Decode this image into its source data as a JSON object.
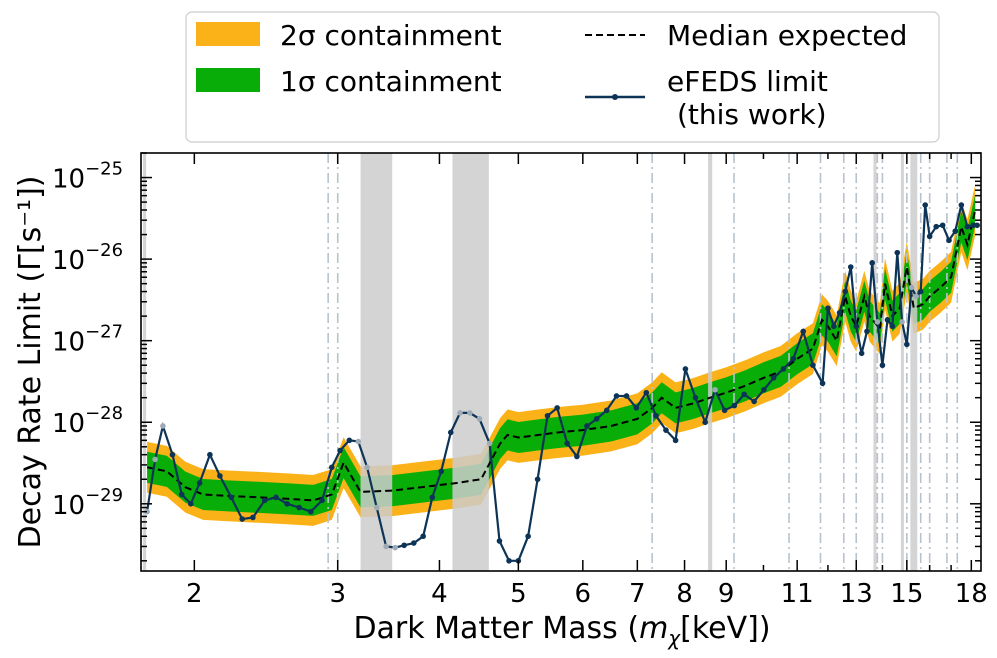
{
  "chart_data": {
    "type": "line",
    "title": "",
    "xlabel_text": "Dark Matter Mass (",
    "xlabel_sym": "m",
    "xlabel_sub": "χ",
    "xlabel_unit": "[keV])",
    "ylabel": "Decay Rate Limit (Γ[s⁻¹])",
    "xscale": "log",
    "yscale": "log",
    "xlim": [
      1.72,
      18.5
    ],
    "ylim": [
      1.5e-30,
      2e-25
    ],
    "x_ticks": [
      {
        "v": 2,
        "label": "2"
      },
      {
        "v": 3,
        "label": "3"
      },
      {
        "v": 4,
        "label": "4"
      },
      {
        "v": 5,
        "label": "5"
      },
      {
        "v": 6,
        "label": "6"
      },
      {
        "v": 7,
        "label": "7"
      },
      {
        "v": 8,
        "label": "8"
      },
      {
        "v": 9,
        "label": "9"
      },
      {
        "v": 11,
        "label": "11"
      },
      {
        "v": 13,
        "label": "13"
      },
      {
        "v": 15,
        "label": "15"
      },
      {
        "v": 18,
        "label": "18"
      }
    ],
    "y_ticks": [
      {
        "exp": -29,
        "label": "10",
        "sup": "−29"
      },
      {
        "exp": -28,
        "label": "10",
        "sup": "−28"
      },
      {
        "exp": -27,
        "label": "10",
        "sup": "−27"
      },
      {
        "exp": -26,
        "label": "10",
        "sup": "−26"
      },
      {
        "exp": -25,
        "label": "10",
        "sup": "−25"
      }
    ],
    "legend": {
      "placement": "top (above axes)",
      "sigma2_label": "2σ containment",
      "sigma1_label": "1σ containment",
      "median_label": "Median expected",
      "limit_label_1": "eFEDS limit",
      "limit_label_2": "(this work)"
    },
    "colors": {
      "sigma2": "#fbb118",
      "sigma1": "#08ad08",
      "median": "#000000",
      "limit": "#0d3457",
      "masked_region": "#cccccc",
      "masked_line": "#9eaab6",
      "dashdot": "#b8c2cc"
    },
    "masked_regions": [
      [
        1.73,
        1.745
      ],
      [
        3.2,
        3.5
      ],
      [
        4.15,
        4.6
      ],
      [
        8.55,
        8.65
      ],
      [
        13.65,
        13.75
      ],
      [
        14.75,
        14.85
      ],
      [
        15.15,
        15.45
      ]
    ],
    "dashdot_lines": [
      2.92,
      3.0,
      7.3,
      9.2,
      10.75,
      11.75,
      12.55,
      13.0,
      13.8,
      14.0,
      15.0,
      15.6,
      16.0,
      16.8,
      17.3
    ],
    "series": [
      {
        "name": "Median expected",
        "style": "dashed",
        "x": [
          1.75,
          1.85,
          1.95,
          2.05,
          2.2,
          2.4,
          2.6,
          2.8,
          2.95,
          3.05,
          3.2,
          3.5,
          3.8,
          4.2,
          4.5,
          4.75,
          4.85,
          5.0,
          5.3,
          5.6,
          6.0,
          6.5,
          7.0,
          7.3,
          7.5,
          7.8,
          8.2,
          8.6,
          9.0,
          9.5,
          10.0,
          10.5,
          11.0,
          11.5,
          11.8,
          12.0,
          12.3,
          12.6,
          12.8,
          13.0,
          13.3,
          13.5,
          13.9,
          14.1,
          14.4,
          14.7,
          15.0,
          15.3,
          15.7,
          16.0,
          16.5,
          17.0,
          17.5,
          17.8,
          18.2
        ],
        "y": [
          2.8e-29,
          2.5e-29,
          1.6e-29,
          1.3e-29,
          1.25e-29,
          1.2e-29,
          1.15e-29,
          1.1e-29,
          1.3e-29,
          3.2e-29,
          1.4e-29,
          1.45e-29,
          1.6e-29,
          1.8e-29,
          2e-29,
          5.5e-29,
          7e-29,
          6.5e-29,
          7e-29,
          7.5e-29,
          8e-29,
          9e-29,
          1.1e-28,
          1.5e-28,
          2e-28,
          1.5e-28,
          1.7e-28,
          2e-28,
          2.3e-28,
          2.8e-28,
          3.5e-28,
          4.2e-28,
          6e-28,
          8e-28,
          1.8e-27,
          1.5e-27,
          1e-27,
          3.5e-27,
          2e-27,
          1.5e-27,
          3.5e-27,
          2e-27,
          1.4e-27,
          5e-27,
          2e-27,
          2.5e-27,
          8e-27,
          2.5e-27,
          2.8e-27,
          3.5e-27,
          4.5e-27,
          6e-27,
          2.5e-26,
          1.5e-26,
          4e-26
        ]
      },
      {
        "name": "eFEDS limit",
        "style": "solid+markers",
        "x": [
          1.75,
          1.79,
          1.83,
          1.88,
          1.93,
          1.98,
          2.03,
          2.09,
          2.15,
          2.22,
          2.29,
          2.36,
          2.44,
          2.52,
          2.6,
          2.69,
          2.78,
          2.87,
          2.95,
          3.02,
          3.1,
          3.18,
          3.26,
          3.35,
          3.44,
          3.53,
          3.62,
          3.72,
          3.82,
          3.92,
          4.02,
          4.13,
          4.24,
          4.36,
          4.48,
          4.61,
          4.74,
          4.87,
          5.0,
          5.14,
          5.28,
          5.43,
          5.58,
          5.74,
          5.9,
          6.07,
          6.24,
          6.42,
          6.6,
          6.79,
          6.98,
          7.18,
          7.38,
          7.59,
          7.8,
          8.02,
          8.25,
          8.48,
          8.72,
          8.96,
          9.21,
          9.47,
          9.74,
          10.01,
          10.29,
          10.58,
          10.88,
          11.19,
          11.5,
          11.82,
          12.0,
          12.2,
          12.4,
          12.6,
          12.8,
          13.0,
          13.2,
          13.4,
          13.6,
          13.8,
          14.0,
          14.2,
          14.4,
          14.6,
          14.8,
          15.0,
          15.2,
          15.4,
          15.6,
          15.8,
          16.0,
          16.3,
          16.6,
          16.9,
          17.2,
          17.5,
          17.8,
          18.1,
          18.3
        ],
        "y": [
          8e-30,
          3.5e-29,
          9e-29,
          4e-29,
          1.3e-29,
          1e-29,
          1.8e-29,
          4e-29,
          2.2e-29,
          1.2e-29,
          6.5e-30,
          6.8e-30,
          1.1e-29,
          1.2e-29,
          1e-29,
          9e-30,
          8e-30,
          1.1e-29,
          2.8e-29,
          4.5e-29,
          6e-29,
          5.8e-29,
          2.8e-29,
          9e-30,
          3e-30,
          2.9e-30,
          3.1e-30,
          3.3e-30,
          4e-30,
          1.2e-29,
          2.5e-29,
          7.5e-29,
          1.3e-28,
          1.3e-28,
          1.1e-28,
          5.5e-29,
          3.5e-30,
          2e-30,
          2e-30,
          4e-30,
          2e-29,
          1.2e-28,
          1.5e-28,
          5.5e-29,
          3.8e-29,
          9e-29,
          1.1e-28,
          1.4e-28,
          2.1e-28,
          2.1e-28,
          1.5e-28,
          2.3e-28,
          1.2e-28,
          8e-29,
          6e-29,
          4.5e-28,
          2e-28,
          1e-28,
          2.5e-28,
          1.4e-28,
          1.6e-28,
          2.2e-28,
          1.8e-28,
          2.5e-28,
          3.5e-28,
          4.5e-28,
          6e-28,
          1.3e-27,
          5e-28,
          3e-28,
          2.5e-27,
          1.5e-27,
          2.2e-27,
          4e-27,
          8e-27,
          1.5e-27,
          7e-28,
          1.3e-27,
          9e-27,
          1.7e-27,
          5e-28,
          1.8e-27,
          1.5e-27,
          1.2e-26,
          1.7e-27,
          9e-28,
          4.5e-27,
          3.5e-27,
          4e-27,
          4.6e-26,
          1.9e-26,
          2.5e-26,
          2.6e-26,
          1.7e-26,
          2.2e-26,
          4.6e-26,
          2.5e-26,
          2.6e-26,
          2.6e-26
        ]
      }
    ],
    "band_1sigma_factor": 1.55,
    "band_2sigma_factor": 2.05
  }
}
